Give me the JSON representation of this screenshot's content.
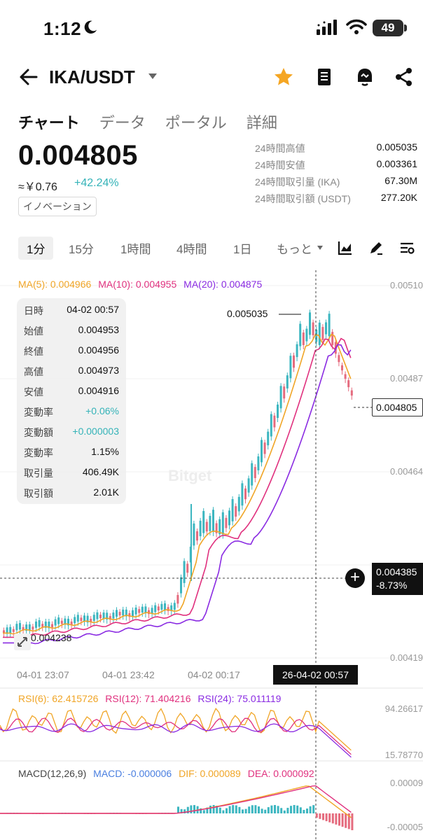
{
  "status_bar": {
    "time": "1:12",
    "battery": "49"
  },
  "header": {
    "pair": "IKA/USDT"
  },
  "tabs": [
    "チャート",
    "データ",
    "ポータル",
    "詳細"
  ],
  "ticker": {
    "price": "0.004805",
    "fiat": "≈￥0.76",
    "change": "+42.24%",
    "tag": "イノベーション"
  },
  "stats": [
    {
      "label": "24時間高値",
      "value": "0.005035"
    },
    {
      "label": "24時間安値",
      "value": "0.003361"
    },
    {
      "label": "24時間取引量 (IKA)",
      "value": "67.30M"
    },
    {
      "label": "24時間取引額 (USDT)",
      "value": "277.20K"
    }
  ],
  "intervals": [
    "1分",
    "15分",
    "1時間",
    "4時間",
    "1日",
    "もっと"
  ],
  "chart": {
    "ma": {
      "ma5": "MA(5): 0.004966",
      "ma10": "MA(10): 0.004955",
      "ma20": "MA(20): 0.004875"
    },
    "y_labels": [
      "0.00510",
      "0.00487",
      "0.00464",
      "0.00441",
      "0.00419"
    ],
    "current_price": "0.004805",
    "crosshair_price": "0.004385",
    "crosshair_change": "-8.73%",
    "high_label": "0.005035",
    "low_label": "0.004238",
    "x_labels": [
      "04-01 23:07",
      "04-01 23:42",
      "04-02 00:17"
    ],
    "x_cursor": "26-04-02 00:57",
    "watermark": "Bitget",
    "info": [
      {
        "k": "日時",
        "v": "04-02 00:57"
      },
      {
        "k": "始値",
        "v": "0.004953"
      },
      {
        "k": "終値",
        "v": "0.004956"
      },
      {
        "k": "高値",
        "v": "0.004973"
      },
      {
        "k": "安値",
        "v": "0.004916"
      },
      {
        "k": "変動率",
        "v": "+0.06%"
      },
      {
        "k": "変動額",
        "v": "+0.000003"
      },
      {
        "k": "変動率",
        "v": "1.15%"
      },
      {
        "k": "取引量",
        "v": "406.49K"
      },
      {
        "k": "取引額",
        "v": "2.01K"
      }
    ]
  },
  "rsi": {
    "r6": "RSI(6): 62.415726",
    "r12": "RSI(12): 71.404216",
    "r24": "RSI(24): 75.011119",
    "y_top": "94.26617",
    "y_bottom": "15.78770"
  },
  "macd": {
    "title": "MACD(12,26,9)",
    "macd": "MACD: -0.000006",
    "dif": "DIF: 0.000089",
    "dea": "DEA: 0.000092",
    "y_top": "0.00009",
    "y_bottom": "-0.00005"
  },
  "colors": {
    "up": "#3cb6c0",
    "down": "#e56b7e",
    "ma5": "#f0a526",
    "ma10": "#e0307e",
    "ma20": "#8a2be2",
    "star": "#f5a623"
  }
}
